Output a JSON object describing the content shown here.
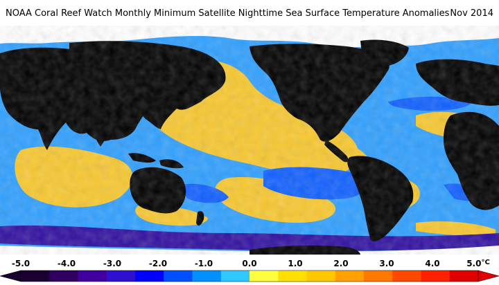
{
  "title": "NOAA Coral Reef Watch Monthly Minimum Satellite Nighttime Sea Surface Temperature Anomalies",
  "date": "Nov 2014",
  "colorbar": {
    "unit": "°C",
    "ticks": [
      {
        "value": -5,
        "label": "-5.0"
      },
      {
        "value": -4,
        "label": "-4.0"
      },
      {
        "value": -3,
        "label": "-3.0"
      },
      {
        "value": -2,
        "label": "-2.0"
      },
      {
        "value": -1,
        "label": "-1.0"
      },
      {
        "value": 0,
        "label": "0.0"
      },
      {
        "value": 1,
        "label": "1.0"
      },
      {
        "value": 2,
        "label": "2.0"
      },
      {
        "value": 3,
        "label": "3.0"
      },
      {
        "value": 4,
        "label": "4.0"
      },
      {
        "value": 5,
        "label": "5.0"
      }
    ],
    "range": [
      -5,
      5
    ],
    "colors": [
      "#1a0030",
      "#300060",
      "#4000a0",
      "#3010d0",
      "#0000ff",
      "#0050ff",
      "#0090ff",
      "#30c8ff",
      "#ffff40",
      "#ffe000",
      "#ffc800",
      "#ffa000",
      "#ff7800",
      "#ff4800",
      "#ff2000",
      "#e00000"
    ]
  },
  "map_colors": {
    "land": "#000000",
    "ice": "#ffffff",
    "ocean_base": "#30a0ff",
    "warm": "#f8c830",
    "cool": "#1060ff",
    "cold": "#3010a0"
  }
}
